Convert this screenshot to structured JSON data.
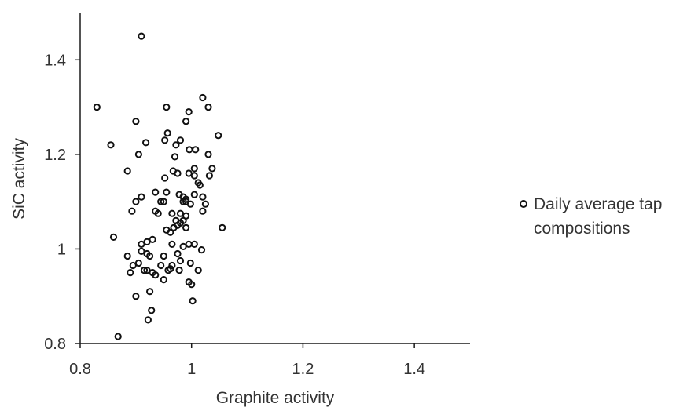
{
  "chart_data": {
    "type": "scatter",
    "title": "",
    "xlabel": "Graphite activity",
    "ylabel": "SiC activity",
    "xlim": [
      0.8,
      1.5
    ],
    "ylim": [
      0.8,
      1.5
    ],
    "x_ticks": [
      "0.8",
      "1",
      "1.2",
      "1.4"
    ],
    "x_tick_values": [
      0.8,
      1.0,
      1.2,
      1.4
    ],
    "y_ticks": [
      "0.8",
      "1",
      "1.2",
      "1.4"
    ],
    "y_tick_values": [
      0.8,
      1.0,
      1.2,
      1.4
    ],
    "grid": false,
    "legend": {
      "position": "right",
      "entries": [
        "Daily average tap compositions"
      ]
    },
    "marker_color": "#111111",
    "series": [
      {
        "name": "Daily average tap compositions",
        "points": [
          [
            0.91,
            1.45
          ],
          [
            1.02,
            1.32
          ],
          [
            1.03,
            1.3
          ],
          [
            0.83,
            1.3
          ],
          [
            0.955,
            1.3
          ],
          [
            0.995,
            1.29
          ],
          [
            0.9,
            1.27
          ],
          [
            0.99,
            1.27
          ],
          [
            1.048,
            1.24
          ],
          [
            0.957,
            1.245
          ],
          [
            0.952,
            1.23
          ],
          [
            0.98,
            1.23
          ],
          [
            0.972,
            1.22
          ],
          [
            0.918,
            1.225
          ],
          [
            0.855,
            1.22
          ],
          [
            0.996,
            1.21
          ],
          [
            1.007,
            1.21
          ],
          [
            0.885,
            1.165
          ],
          [
            0.905,
            1.2
          ],
          [
            1.03,
            1.2
          ],
          [
            0.97,
            1.195
          ],
          [
            1.037,
            1.17
          ],
          [
            1.005,
            1.17
          ],
          [
            1.032,
            1.155
          ],
          [
            0.967,
            1.165
          ],
          [
            0.975,
            1.16
          ],
          [
            0.995,
            1.16
          ],
          [
            0.952,
            1.15
          ],
          [
            1.005,
            1.155
          ],
          [
            1.012,
            1.14
          ],
          [
            1.015,
            1.135
          ],
          [
            0.935,
            1.12
          ],
          [
            0.955,
            1.12
          ],
          [
            0.978,
            1.115
          ],
          [
            0.985,
            1.11
          ],
          [
            0.99,
            1.105
          ],
          [
            1.005,
            1.115
          ],
          [
            1.02,
            1.11
          ],
          [
            0.91,
            1.11
          ],
          [
            0.9,
            1.1
          ],
          [
            0.945,
            1.1
          ],
          [
            0.95,
            1.1
          ],
          [
            0.985,
            1.1
          ],
          [
            0.99,
            1.1
          ],
          [
            0.998,
            1.095
          ],
          [
            1.025,
            1.095
          ],
          [
            1.02,
            1.08
          ],
          [
            0.893,
            1.08
          ],
          [
            0.935,
            1.08
          ],
          [
            0.94,
            1.075
          ],
          [
            0.965,
            1.075
          ],
          [
            0.98,
            1.075
          ],
          [
            0.99,
            1.07
          ],
          [
            0.972,
            1.06
          ],
          [
            0.985,
            1.06
          ],
          [
            0.98,
            1.055
          ],
          [
            0.975,
            1.05
          ],
          [
            0.968,
            1.045
          ],
          [
            0.955,
            1.04
          ],
          [
            0.962,
            1.035
          ],
          [
            0.99,
            1.045
          ],
          [
            1.055,
            1.045
          ],
          [
            0.86,
            1.025
          ],
          [
            0.93,
            1.02
          ],
          [
            0.92,
            1.015
          ],
          [
            0.91,
            1.01
          ],
          [
            0.965,
            1.01
          ],
          [
            0.985,
            1.005
          ],
          [
            0.995,
            1.01
          ],
          [
            1.005,
            1.01
          ],
          [
            1.018,
            0.998
          ],
          [
            0.91,
            0.995
          ],
          [
            0.92,
            0.99
          ],
          [
            0.925,
            0.985
          ],
          [
            0.95,
            0.985
          ],
          [
            0.975,
            0.99
          ],
          [
            0.98,
            0.975
          ],
          [
            0.885,
            0.985
          ],
          [
            0.905,
            0.97
          ],
          [
            0.895,
            0.965
          ],
          [
            0.945,
            0.965
          ],
          [
            0.965,
            0.965
          ],
          [
            0.998,
            0.97
          ],
          [
            0.89,
            0.95
          ],
          [
            0.915,
            0.955
          ],
          [
            0.92,
            0.955
          ],
          [
            0.93,
            0.95
          ],
          [
            0.958,
            0.955
          ],
          [
            0.962,
            0.958
          ],
          [
            0.978,
            0.955
          ],
          [
            1.012,
            0.955
          ],
          [
            0.935,
            0.945
          ],
          [
            0.95,
            0.935
          ],
          [
            0.995,
            0.93
          ],
          [
            1.0,
            0.925
          ],
          [
            0.925,
            0.91
          ],
          [
            0.9,
            0.9
          ],
          [
            1.002,
            0.89
          ],
          [
            0.928,
            0.87
          ],
          [
            0.922,
            0.85
          ],
          [
            0.868,
            0.815
          ]
        ]
      }
    ]
  }
}
